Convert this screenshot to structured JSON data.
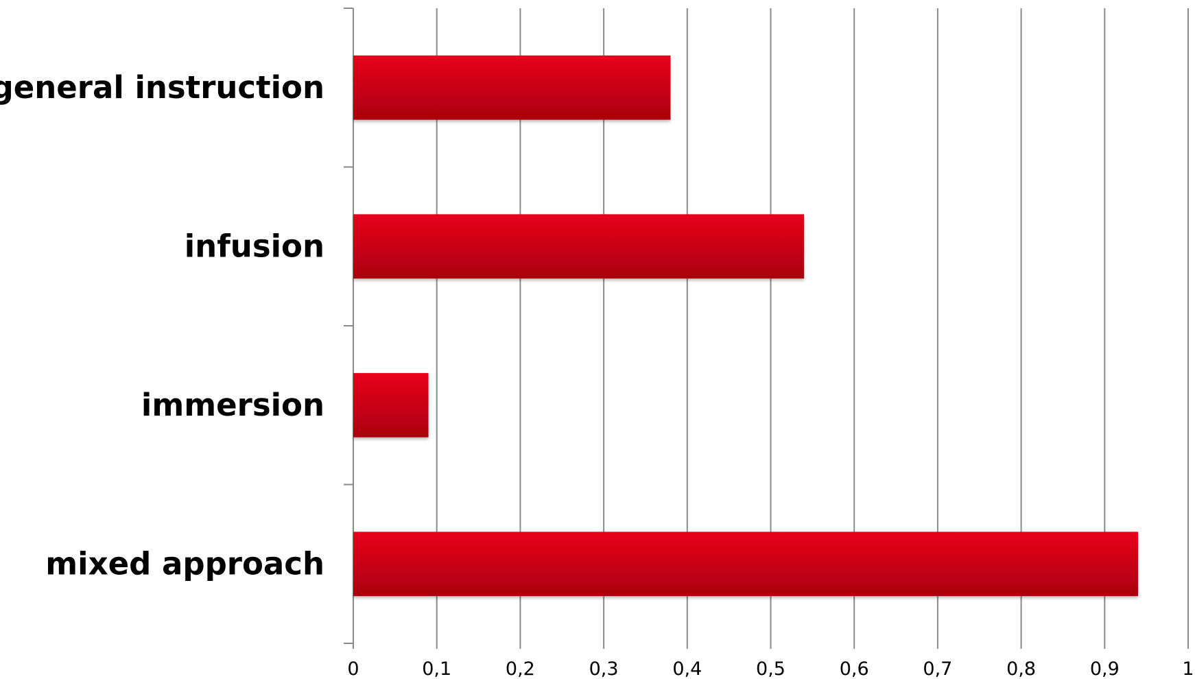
{
  "chart_data": {
    "type": "bar",
    "orientation": "horizontal",
    "categories": [
      "general instruction",
      "infusion",
      "immersion",
      "mixed approach"
    ],
    "values": [
      0.38,
      0.54,
      0.09,
      0.94
    ],
    "xlim": [
      0,
      1
    ],
    "x_ticks": [
      0,
      0.1,
      0.2,
      0.3,
      0.4,
      0.5,
      0.6,
      0.7,
      0.8,
      0.9,
      1
    ],
    "x_tick_labels": [
      "0",
      "0,1",
      "0,2",
      "0,3",
      "0,4",
      "0,5",
      "0,6",
      "0,7",
      "0,8",
      "0,9",
      "1"
    ],
    "title": "",
    "xlabel": "",
    "ylabel": "",
    "grid": "vertical",
    "legend": "none",
    "colors": {
      "bar_top": "#e8001c",
      "bar_bottom": "#a8000f",
      "grid": "#8a8a8a",
      "text": "#000000"
    }
  }
}
